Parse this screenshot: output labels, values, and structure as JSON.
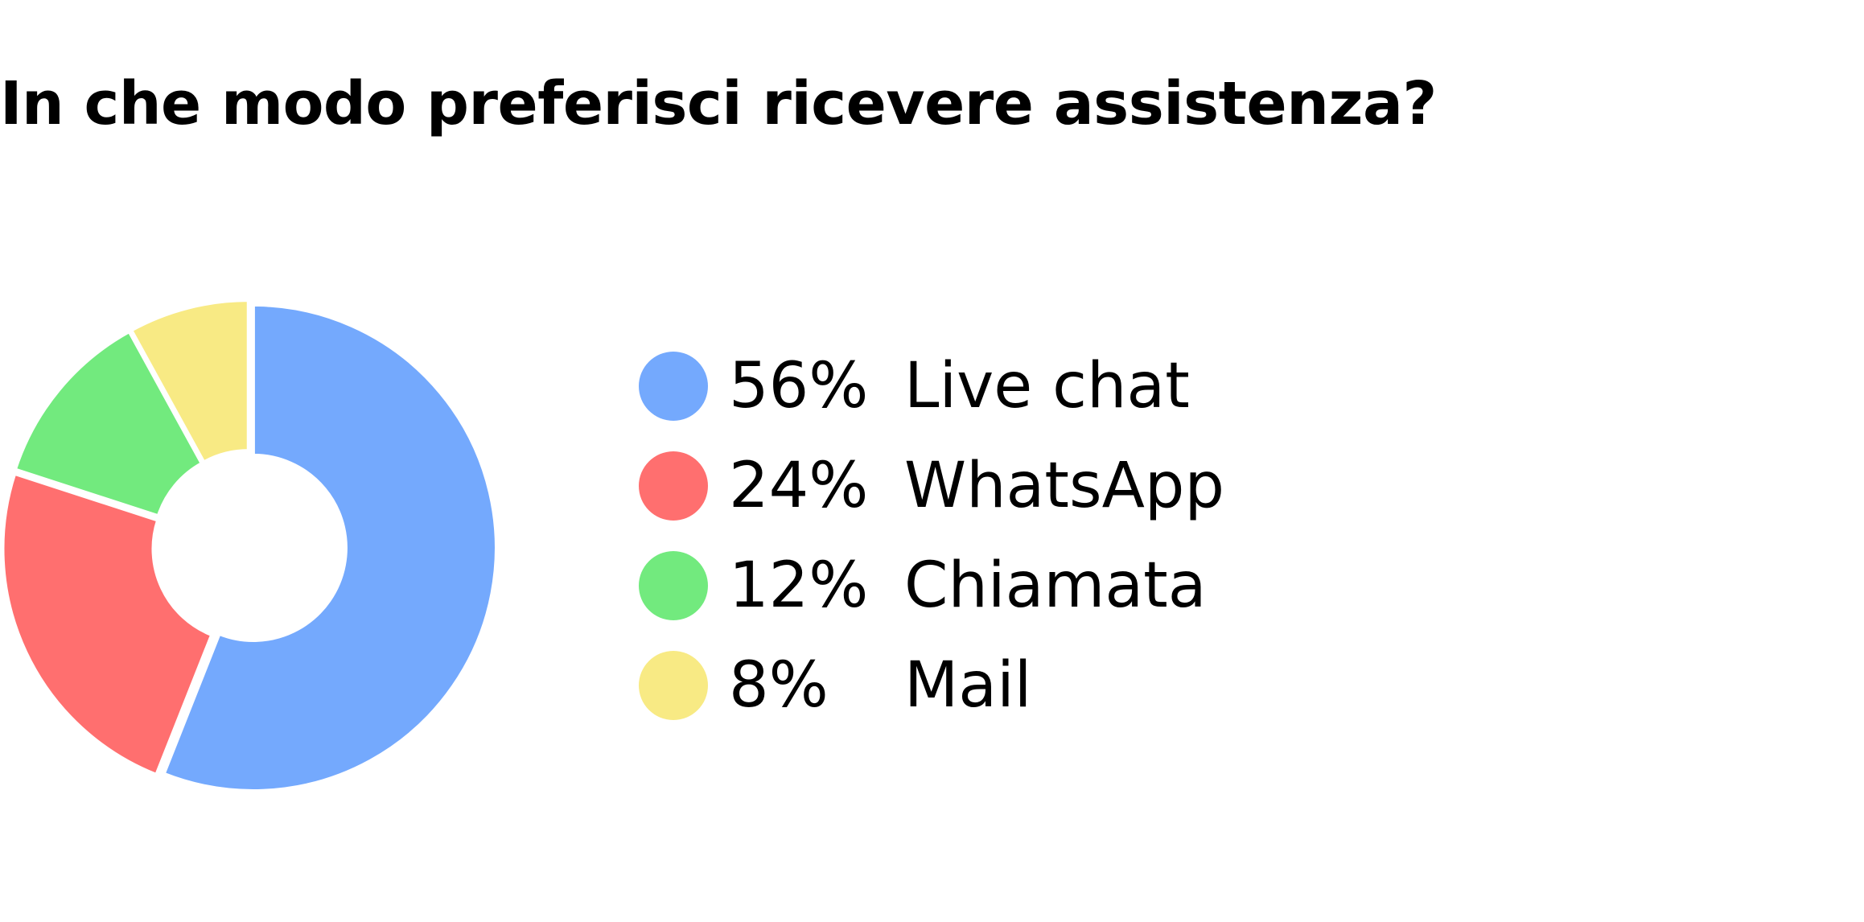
{
  "title": "In che modo preferisci ricevere assistenza?",
  "chart_data": {
    "type": "pie",
    "title": "In che modo preferisci ricevere assistenza?",
    "donut": true,
    "legend_position": "right",
    "categories": [
      "Live chat",
      "WhatsApp",
      "Chiamata",
      "Mail"
    ],
    "values": [
      56,
      24,
      12,
      8
    ],
    "value_labels": [
      "56%",
      "24%",
      "12%",
      "8%"
    ],
    "colors": [
      "#74A9FD",
      "#FF6F6F",
      "#72EA7E",
      "#F8EA84"
    ]
  }
}
